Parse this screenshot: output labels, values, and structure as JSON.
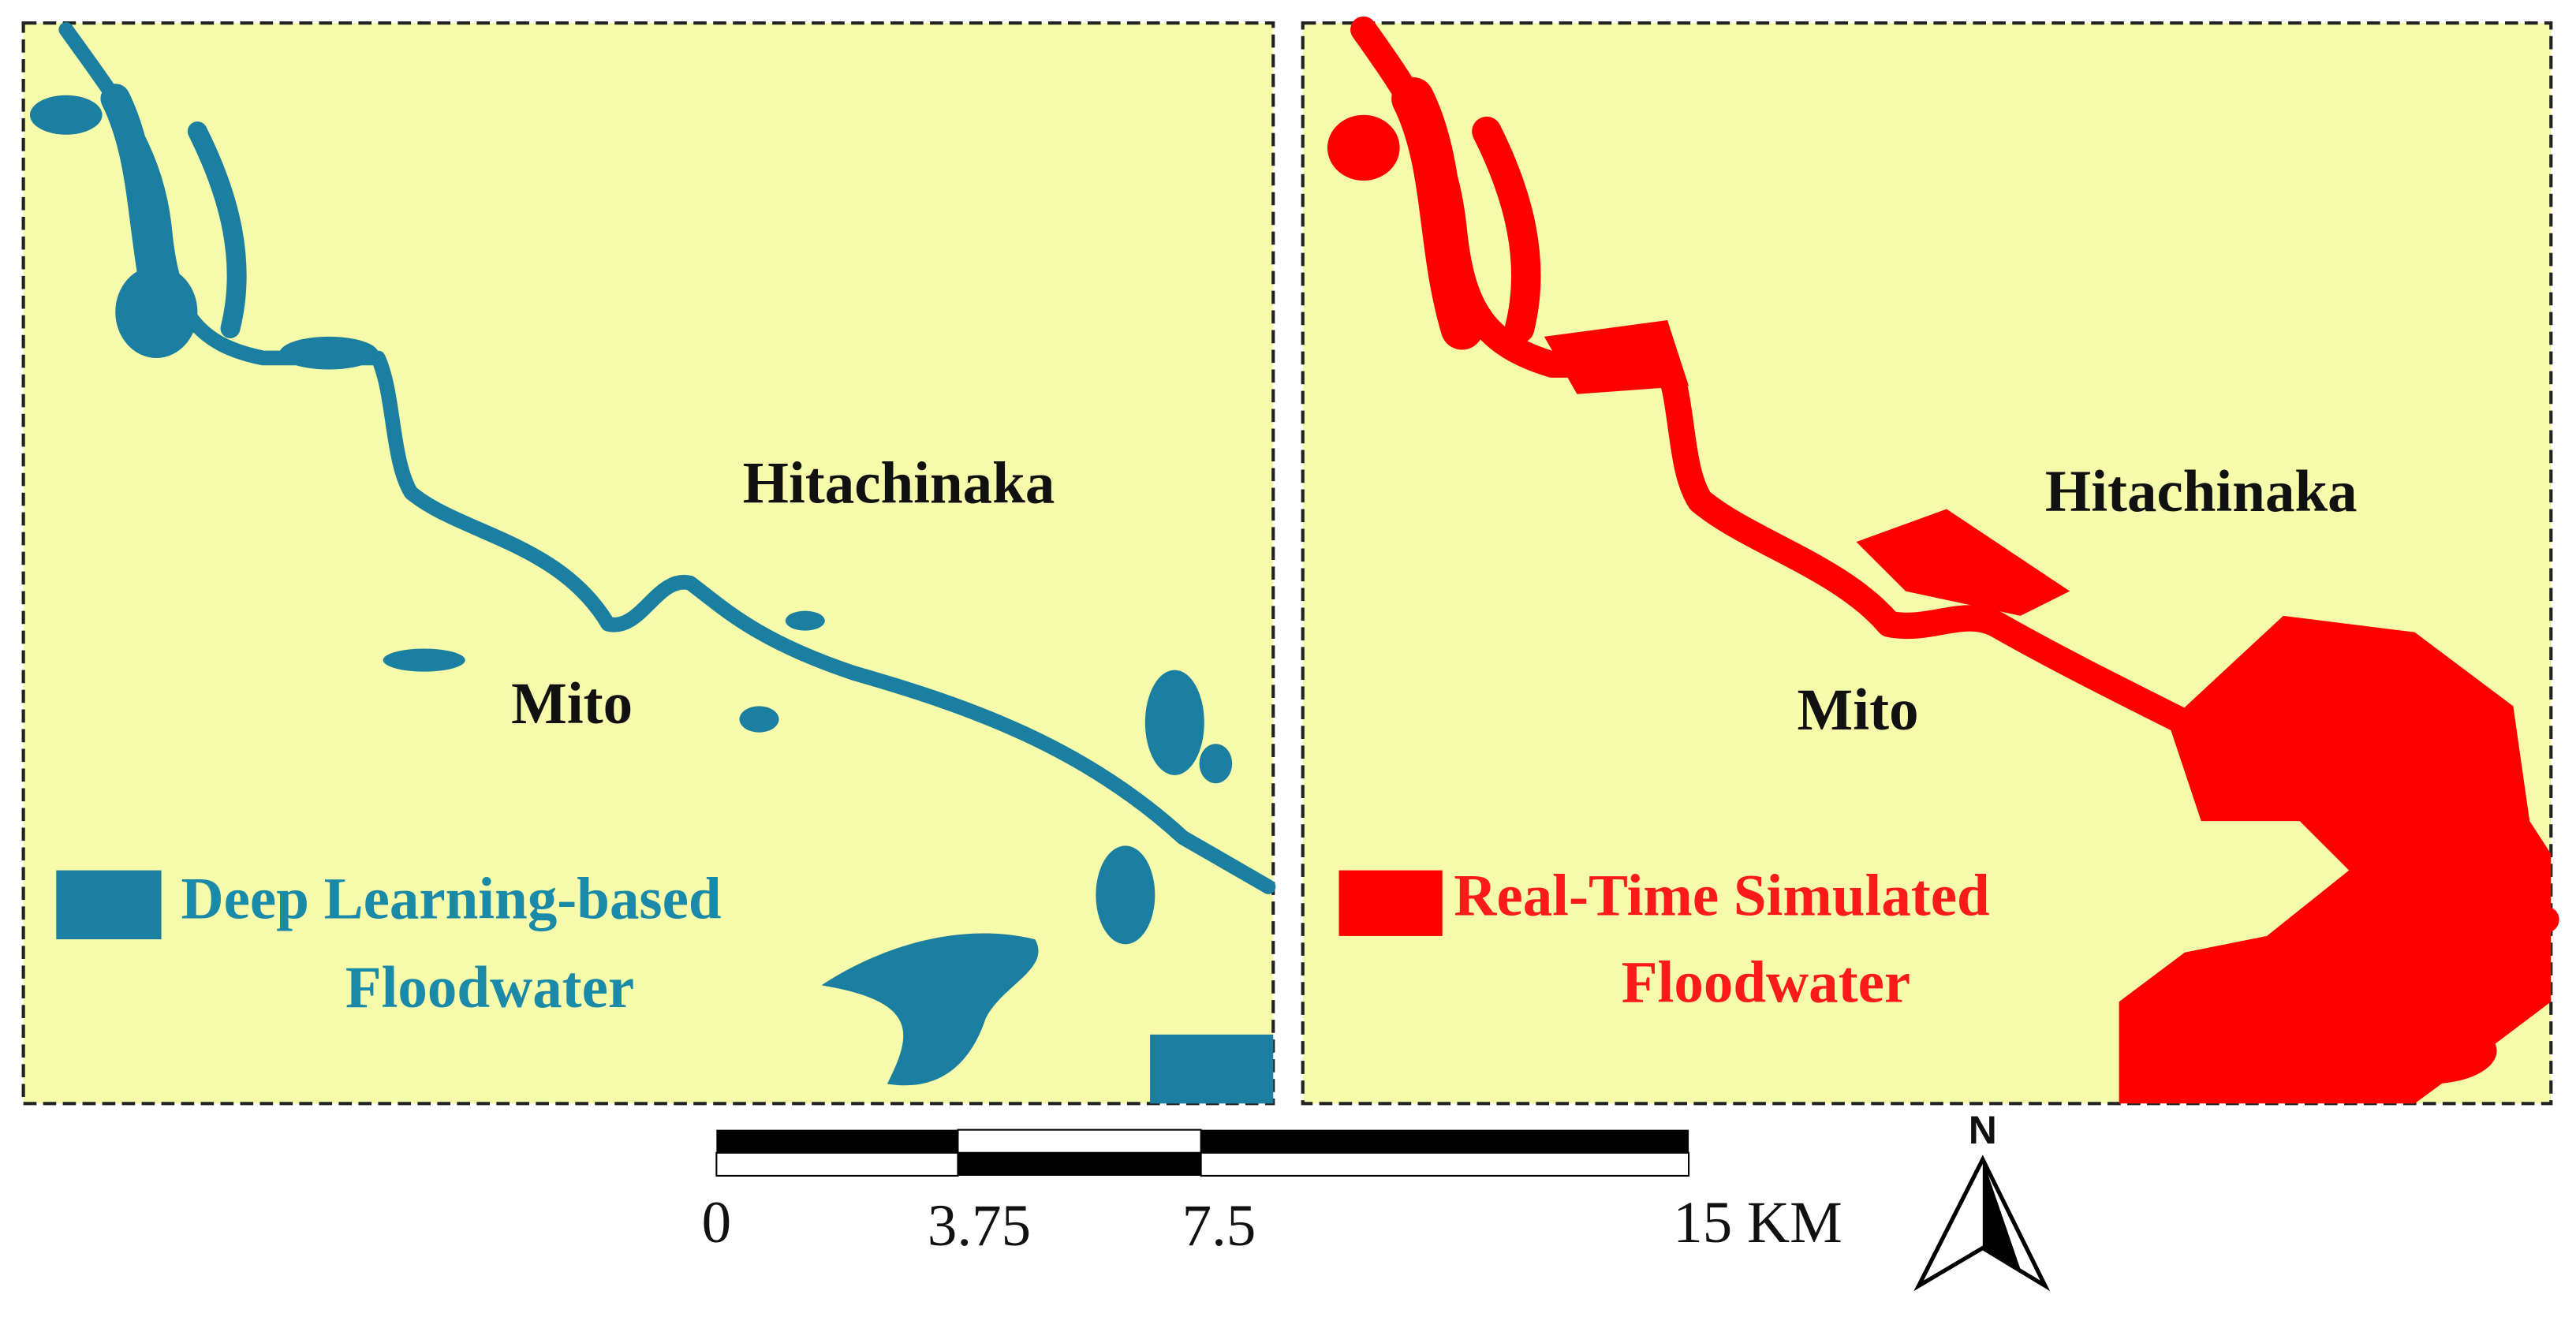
{
  "panels": [
    {
      "places": [
        "Hitachinaka",
        "Mito"
      ],
      "legend_lines": [
        "Deep Learning-based",
        "Floodwater"
      ]
    },
    {
      "places": [
        "Hitachinaka",
        "Mito"
      ],
      "legend_lines": [
        "Real-Time Simulated",
        "Floodwater"
      ]
    }
  ],
  "scale_bar": {
    "labels": [
      "0",
      "3.75",
      "7.5",
      "15 KM"
    ]
  },
  "north_arrow": {
    "label": "N"
  }
}
